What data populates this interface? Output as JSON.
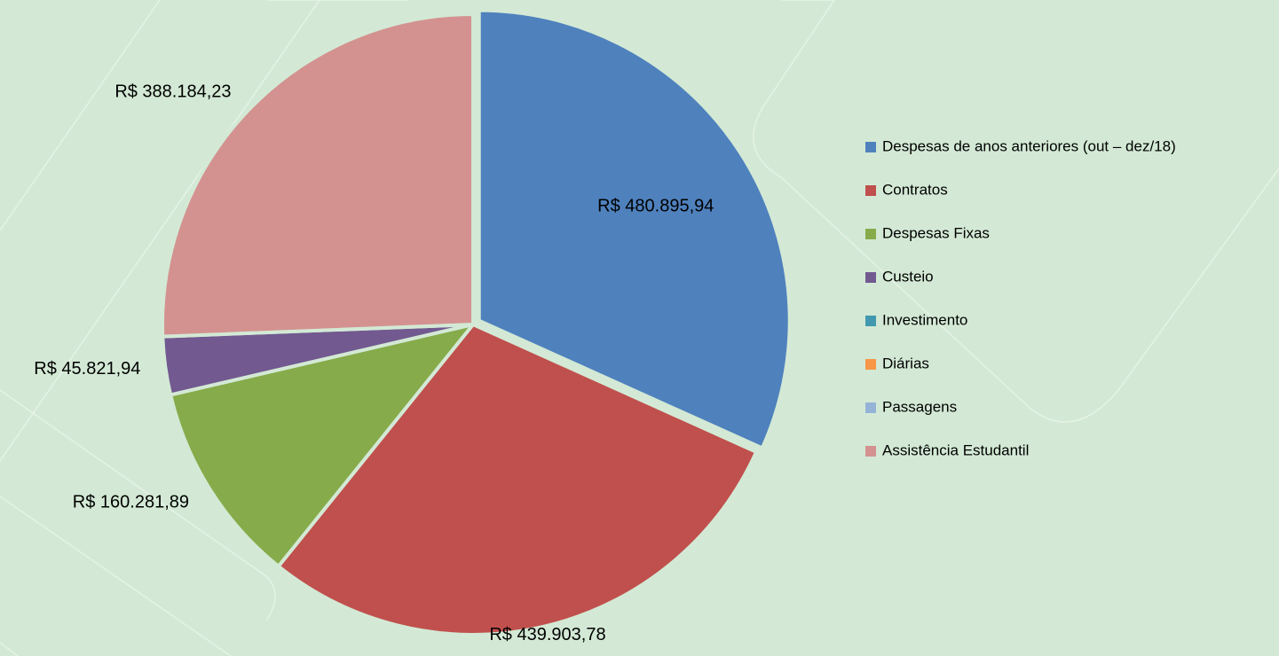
{
  "chart_data": {
    "type": "pie",
    "categories": [
      "Despesas de anos anteriores (out – dez/18)",
      "Contratos",
      "Despesas Fixas",
      "Custeio",
      "Investimento",
      "Diárias",
      "Passagens",
      "Assistência Estudantil"
    ],
    "values": [
      480895.94,
      439903.78,
      160281.89,
      45821.94,
      0,
      0,
      0,
      388184.23
    ],
    "value_labels": [
      "R$ 480.895,94",
      "R$ 439.903,78",
      "R$ 160.281,89",
      "R$ 45.821,94",
      null,
      null,
      null,
      "R$ 388.184,23"
    ],
    "colors": [
      "#4f81bd",
      "#c0504d",
      "#86ab4a",
      "#725990",
      "#4198af",
      "#f79646",
      "#95b3d7",
      "#d39290"
    ],
    "legend": "right"
  }
}
